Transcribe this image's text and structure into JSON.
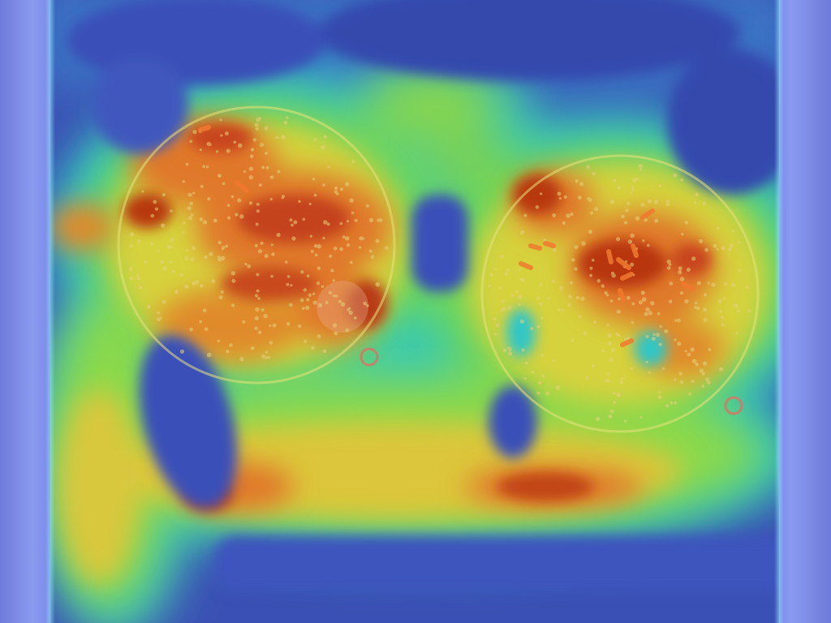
{
  "image": {
    "kind": "attention-heatmap-overlay",
    "palette": {
      "low": "#3a4fb8",
      "midlow": "#2ec8c8",
      "mid": "#7fd84a",
      "midhigh": "#e8d23a",
      "high": "#d8551a",
      "peak": "#b8320f",
      "frame": "#6b78d6"
    }
  }
}
